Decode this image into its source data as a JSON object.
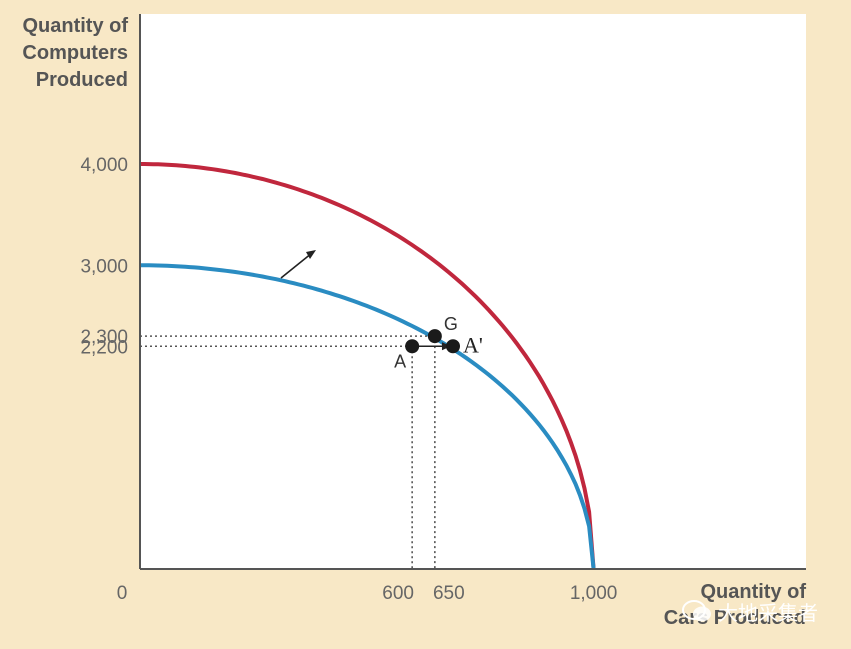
{
  "chart_data": {
    "type": "line",
    "ylabel": [
      "Quantity of",
      "Computers",
      "Produced"
    ],
    "xlabel": [
      "Quantity of",
      "Cars Produced"
    ],
    "origin_label": "0",
    "xlim": [
      0,
      1400
    ],
    "ylim": [
      0,
      5000
    ],
    "x_ticks": [
      {
        "value": 600,
        "label": "600"
      },
      {
        "value": 650,
        "label": "650"
      },
      {
        "value": 1000,
        "label": "1,000"
      }
    ],
    "y_ticks": [
      {
        "value": 4000,
        "label": "4,000"
      },
      {
        "value": 3000,
        "label": "3,000"
      },
      {
        "value": 2300,
        "label": "2,300"
      },
      {
        "value": 2200,
        "label": "2,200"
      }
    ],
    "series": [
      {
        "color": "#c0273d",
        "intercepts": {
          "x": 1000,
          "y": 4000
        },
        "points": [
          [
            0,
            4000
          ],
          [
            400,
            3350
          ],
          [
            650,
            2300
          ],
          [
            1000,
            0
          ]
        ]
      },
      {
        "color": "#2a8cc2",
        "intercepts": {
          "x": 1000,
          "y": 3000
        },
        "points": [
          [
            0,
            3000
          ],
          [
            300,
            2800
          ],
          [
            600,
            2200
          ],
          [
            1000,
            0
          ]
        ]
      }
    ],
    "points": [
      {
        "label": "A",
        "x": 600,
        "y": 2200
      },
      {
        "label": "A'",
        "x": 690,
        "y": 2200
      },
      {
        "label": "G",
        "x": 650,
        "y": 2300
      }
    ],
    "annotations": [
      "arrow indicating outward shift of the production possibilities frontier"
    ],
    "grid": false
  },
  "watermark": {
    "text": "大地采集者"
  }
}
